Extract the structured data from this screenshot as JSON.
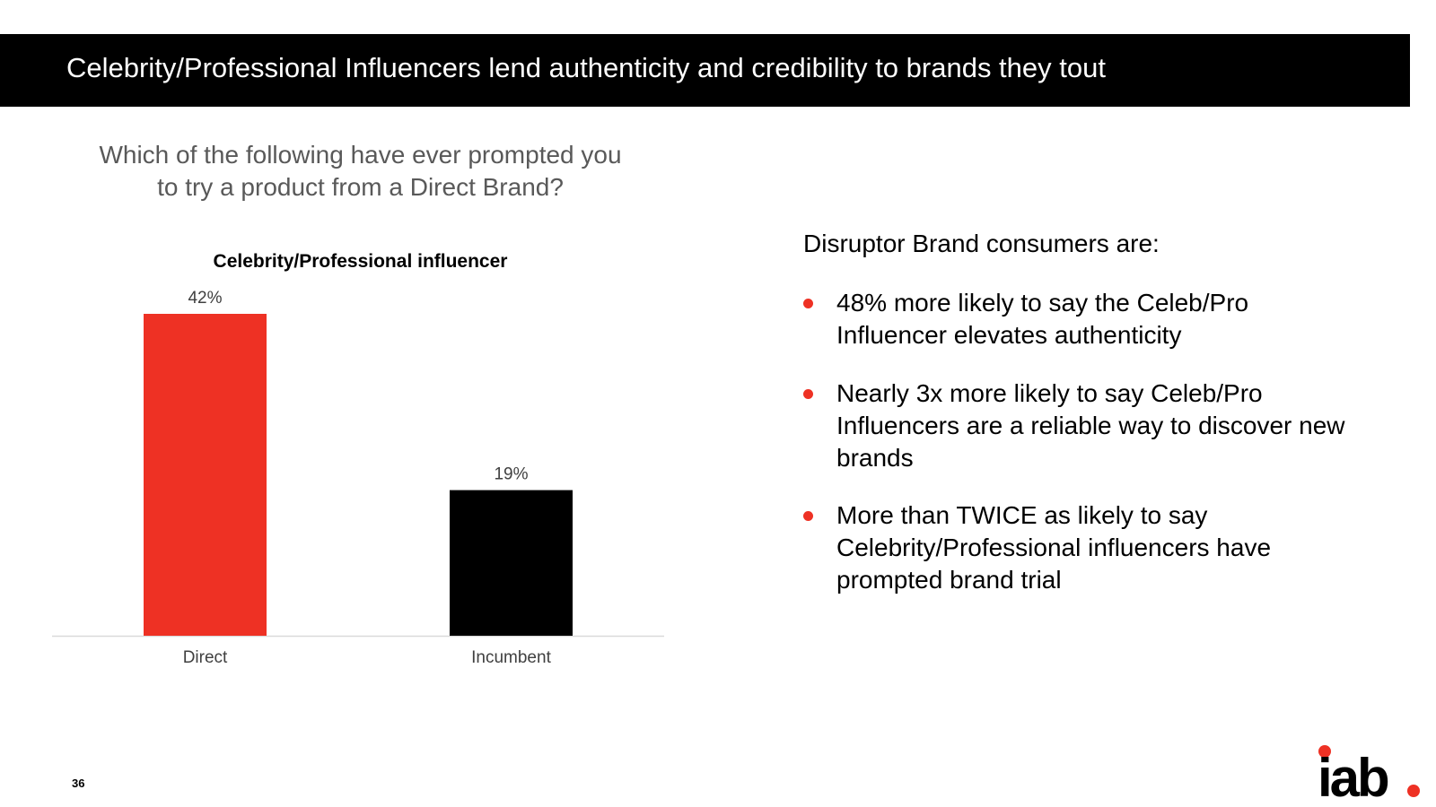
{
  "header": {
    "title": "Celebrity/Professional Influencers lend authenticity and credibility to brands they tout"
  },
  "question": "Which of the following have ever prompted you to try a product from a Direct Brand?",
  "chart_data": {
    "type": "bar",
    "title": "Celebrity/Professional influencer",
    "categories": [
      "Direct",
      "Incumbent"
    ],
    "values": [
      42,
      19
    ],
    "data_labels": [
      "42%",
      "19%"
    ],
    "colors": [
      "#ee3124",
      "#000000"
    ],
    "ylim": [
      0,
      50
    ],
    "grid": false,
    "legend": "none"
  },
  "insights": {
    "lead": "Disruptor Brand consumers are:",
    "bullets": [
      "48% more likely to say the Celeb/Pro Influencer elevates authenticity",
      "Nearly 3x more likely to say Celeb/Pro Influencers are a reliable way to discover new brands",
      "More than TWICE as likely to say Celebrity/Professional influencers have prompted brand trial"
    ]
  },
  "footer": {
    "page_number": "36",
    "logo_text": "iab."
  },
  "colors": {
    "accent": "#ee3124",
    "title_bar": "#000000"
  }
}
